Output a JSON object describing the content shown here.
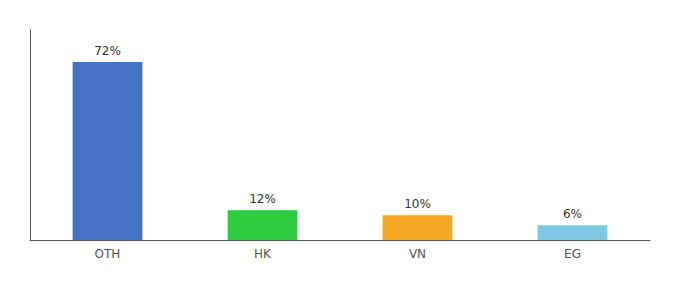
{
  "chart_data": {
    "type": "bar",
    "categories": [
      "OTH",
      "HK",
      "VN",
      "EG"
    ],
    "values": [
      72,
      12,
      10,
      6
    ],
    "value_labels": [
      "72%",
      "12%",
      "10%",
      "6%"
    ],
    "colors": [
      "#4472C4",
      "#2ECC40",
      "#F5A623",
      "#7EC8E3"
    ],
    "ylim": [
      0,
      85
    ],
    "tick_labels": "x",
    "grid": false,
    "data_labels": true
  }
}
